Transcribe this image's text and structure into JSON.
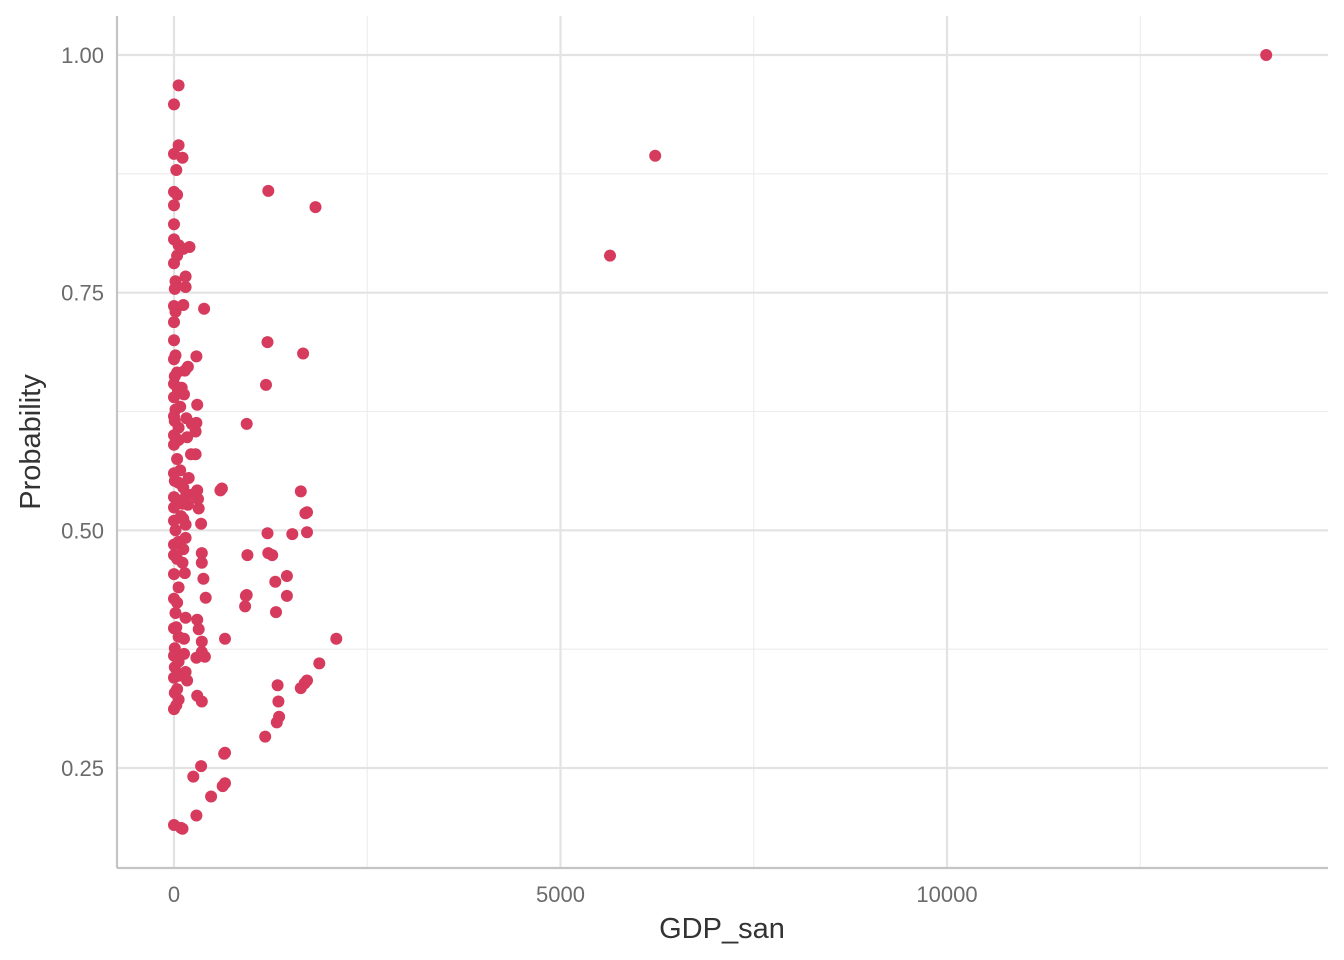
{
  "chart_data": {
    "type": "scatter",
    "title": "",
    "xlabel": "GDP_san",
    "ylabel": "Probability",
    "xlim": [
      -1400,
      14500
    ],
    "ylim": [
      0.15,
      1.04
    ],
    "x_ticks": [
      0,
      5000,
      10000
    ],
    "x_tick_labels": [
      "0",
      "5000",
      "10000"
    ],
    "y_ticks": [
      0.25,
      0.5,
      0.75,
      1.0
    ],
    "y_tick_labels": [
      "0.25",
      "0.50",
      "0.75",
      "1.00"
    ],
    "x_minor_ticks": [
      2500,
      7500,
      12500
    ],
    "y_minor_ticks": [
      0.375,
      0.625,
      0.875
    ],
    "grid": true,
    "point_color": "#D63A5C",
    "series": [
      {
        "points": [
          [
            14130,
            1.0
          ],
          [
            6225,
            0.894
          ],
          [
            5640,
            0.789
          ],
          [
            60,
            0.968
          ],
          [
            0,
            0.948
          ],
          [
            60,
            0.905
          ],
          [
            110,
            0.892
          ],
          [
            0,
            0.896
          ],
          [
            30,
            0.879
          ],
          [
            1220,
            0.857
          ],
          [
            1830,
            0.84
          ],
          [
            0,
            0.856
          ],
          [
            40,
            0.853
          ],
          [
            0,
            0.842
          ],
          [
            0,
            0.822
          ],
          [
            0,
            0.806
          ],
          [
            60,
            0.8
          ],
          [
            200,
            0.798
          ],
          [
            120,
            0.796
          ],
          [
            40,
            0.789
          ],
          [
            0,
            0.781
          ],
          [
            150,
            0.767
          ],
          [
            20,
            0.762
          ],
          [
            10,
            0.754
          ],
          [
            150,
            0.756
          ],
          [
            120,
            0.737
          ],
          [
            0,
            0.736
          ],
          [
            390,
            0.733
          ],
          [
            20,
            0.73
          ],
          [
            0,
            0.719
          ],
          [
            1210,
            0.698
          ],
          [
            0,
            0.7
          ],
          [
            1670,
            0.686
          ],
          [
            290,
            0.683
          ],
          [
            20,
            0.684
          ],
          [
            0,
            0.68
          ],
          [
            180,
            0.672
          ],
          [
            140,
            0.668
          ],
          [
            40,
            0.666
          ],
          [
            10,
            0.662
          ],
          [
            0,
            0.654
          ],
          [
            1190,
            0.653
          ],
          [
            100,
            0.65
          ],
          [
            130,
            0.643
          ],
          [
            50,
            0.648
          ],
          [
            0,
            0.64
          ],
          [
            300,
            0.632
          ],
          [
            80,
            0.63
          ],
          [
            20,
            0.627
          ],
          [
            0,
            0.62
          ],
          [
            160,
            0.618
          ],
          [
            10,
            0.615
          ],
          [
            230,
            0.612
          ],
          [
            290,
            0.613
          ],
          [
            940,
            0.612
          ],
          [
            60,
            0.608
          ],
          [
            0,
            0.6
          ],
          [
            170,
            0.598
          ],
          [
            280,
            0.604
          ],
          [
            0,
            0.59
          ],
          [
            60,
            0.595
          ],
          [
            280,
            0.58
          ],
          [
            220,
            0.58
          ],
          [
            40,
            0.575
          ],
          [
            0,
            0.56
          ],
          [
            80,
            0.563
          ],
          [
            190,
            0.555
          ],
          [
            10,
            0.552
          ],
          [
            60,
            0.55
          ],
          [
            120,
            0.545
          ],
          [
            620,
            0.544
          ],
          [
            300,
            0.542
          ],
          [
            1640,
            0.541
          ],
          [
            600,
            0.542
          ],
          [
            160,
            0.538
          ],
          [
            0,
            0.535
          ],
          [
            40,
            0.532
          ],
          [
            250,
            0.538
          ],
          [
            110,
            0.528
          ],
          [
            310,
            0.533
          ],
          [
            180,
            0.527
          ],
          [
            0,
            0.524
          ],
          [
            320,
            0.523
          ],
          [
            1700,
            0.518
          ],
          [
            1720,
            0.519
          ],
          [
            90,
            0.515
          ],
          [
            120,
            0.512
          ],
          [
            0,
            0.51
          ],
          [
            150,
            0.506
          ],
          [
            350,
            0.507
          ],
          [
            20,
            0.5
          ],
          [
            1210,
            0.497
          ],
          [
            1720,
            0.498
          ],
          [
            1530,
            0.496
          ],
          [
            150,
            0.492
          ],
          [
            60,
            0.488
          ],
          [
            0,
            0.485
          ],
          [
            120,
            0.48
          ],
          [
            0,
            0.474
          ],
          [
            360,
            0.476
          ],
          [
            1220,
            0.476
          ],
          [
            1270,
            0.474
          ],
          [
            950,
            0.474
          ],
          [
            40,
            0.47
          ],
          [
            110,
            0.466
          ],
          [
            360,
            0.466
          ],
          [
            140,
            0.455
          ],
          [
            0,
            0.454
          ],
          [
            1460,
            0.452
          ],
          [
            380,
            0.449
          ],
          [
            1310,
            0.446
          ],
          [
            60,
            0.44
          ],
          [
            940,
            0.432
          ],
          [
            930,
            0.431
          ],
          [
            1460,
            0.431
          ],
          [
            410,
            0.429
          ],
          [
            0,
            0.428
          ],
          [
            40,
            0.424
          ],
          [
            920,
            0.42
          ],
          [
            20,
            0.413
          ],
          [
            1320,
            0.414
          ],
          [
            150,
            0.408
          ],
          [
            300,
            0.406
          ],
          [
            0,
            0.397
          ],
          [
            30,
            0.398
          ],
          [
            320,
            0.396
          ],
          [
            60,
            0.388
          ],
          [
            130,
            0.386
          ],
          [
            660,
            0.386
          ],
          [
            2100,
            0.386
          ],
          [
            360,
            0.383
          ],
          [
            10,
            0.376
          ],
          [
            360,
            0.372
          ],
          [
            0,
            0.368
          ],
          [
            130,
            0.37
          ],
          [
            400,
            0.367
          ],
          [
            290,
            0.366
          ],
          [
            60,
            0.362
          ],
          [
            1880,
            0.36
          ],
          [
            10,
            0.356
          ],
          [
            150,
            0.351
          ],
          [
            60,
            0.347
          ],
          [
            0,
            0.345
          ],
          [
            170,
            0.342
          ],
          [
            1720,
            0.342
          ],
          [
            1690,
            0.339
          ],
          [
            1640,
            0.334
          ],
          [
            1340,
            0.337
          ],
          [
            40,
            0.333
          ],
          [
            10,
            0.329
          ],
          [
            300,
            0.326
          ],
          [
            60,
            0.322
          ],
          [
            360,
            0.32
          ],
          [
            1350,
            0.32
          ],
          [
            30,
            0.316
          ],
          [
            0,
            0.312
          ],
          [
            1360,
            0.304
          ],
          [
            1330,
            0.298
          ],
          [
            1180,
            0.283
          ],
          [
            660,
            0.266
          ],
          [
            650,
            0.265
          ],
          [
            350,
            0.252
          ],
          [
            250,
            0.241
          ],
          [
            660,
            0.234
          ],
          [
            630,
            0.231
          ],
          [
            480,
            0.22
          ],
          [
            290,
            0.2
          ],
          [
            0,
            0.19
          ],
          [
            90,
            0.187
          ],
          [
            110,
            0.186
          ]
        ]
      }
    ]
  }
}
